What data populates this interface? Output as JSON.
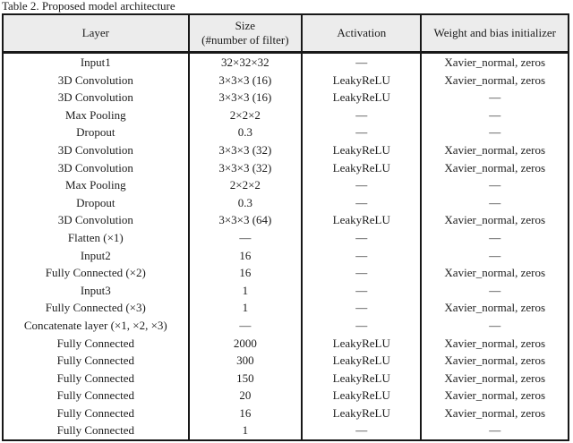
{
  "caption": "Table 2. Proposed model architecture",
  "colors": {
    "header_bg": "#ececec",
    "border": "#181818",
    "text": "#1c1c1c",
    "page_bg": "#ffffff"
  },
  "table": {
    "columns": [
      {
        "line1": "Layer",
        "line2": ""
      },
      {
        "line1": "Size",
        "line2": "(#number of filter)"
      },
      {
        "line1": "Activation",
        "line2": ""
      },
      {
        "line1": "Weight and bias initializer",
        "line2": ""
      }
    ],
    "rows": [
      [
        "Input1",
        "32×32×32",
        "—",
        "Xavier_normal, zeros"
      ],
      [
        "3D Convolution",
        "3×3×3 (16)",
        "LeakyReLU",
        "Xavier_normal, zeros"
      ],
      [
        "3D Convolution",
        "3×3×3 (16)",
        "LeakyReLU",
        "—"
      ],
      [
        "Max Pooling",
        "2×2×2",
        "—",
        "—"
      ],
      [
        "Dropout",
        "0.3",
        "—",
        "—"
      ],
      [
        "3D Convolution",
        "3×3×3 (32)",
        "LeakyReLU",
        "Xavier_normal, zeros"
      ],
      [
        "3D Convolution",
        "3×3×3 (32)",
        "LeakyReLU",
        "Xavier_normal, zeros"
      ],
      [
        "Max Pooling",
        "2×2×2",
        "—",
        "—"
      ],
      [
        "Dropout",
        "0.3",
        "—",
        "—"
      ],
      [
        "3D Convolution",
        "3×3×3 (64)",
        "LeakyReLU",
        "Xavier_normal, zeros"
      ],
      [
        "Flatten (×1)",
        "—",
        "—",
        "—"
      ],
      [
        "Input2",
        "16",
        "—",
        "—"
      ],
      [
        "Fully Connected (×2)",
        "16",
        "—",
        "Xavier_normal, zeros"
      ],
      [
        "Input3",
        "1",
        "—",
        "—"
      ],
      [
        "Fully Connected (×3)",
        "1",
        "—",
        "Xavier_normal, zeros"
      ],
      [
        "Concatenate layer (×1, ×2, ×3)",
        "—",
        "—",
        "—"
      ],
      [
        "Fully Connected",
        "2000",
        "LeakyReLU",
        "Xavier_normal, zeros"
      ],
      [
        "Fully Connected",
        "300",
        "LeakyReLU",
        "Xavier_normal, zeros"
      ],
      [
        "Fully Connected",
        "150",
        "LeakyReLU",
        "Xavier_normal, zeros"
      ],
      [
        "Fully Connected",
        "20",
        "LeakyReLU",
        "Xavier_normal, zeros"
      ],
      [
        "Fully Connected",
        "16",
        "LeakyReLU",
        "Xavier_normal, zeros"
      ],
      [
        "Fully Connected",
        "1",
        "—",
        "—"
      ]
    ]
  }
}
